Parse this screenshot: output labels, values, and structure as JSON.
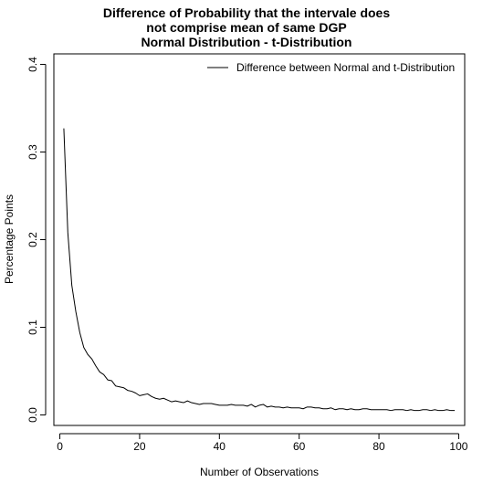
{
  "chart_data": {
    "type": "line",
    "title_lines": [
      "Difference of Probability that the intervale does",
      "not comprise mean of same DGP",
      "Normal Distribution - t-Distribution"
    ],
    "xlabel": "Number of Observations",
    "ylabel": "Percentage Points",
    "xlim": [
      -1.5,
      101.5
    ],
    "ylim": [
      -0.012,
      0.412
    ],
    "x_ticks": [
      0,
      20,
      40,
      60,
      80,
      100
    ],
    "x_tick_labels": [
      "0",
      "20",
      "40",
      "60",
      "80",
      "100"
    ],
    "y_ticks": [
      0.0,
      0.1,
      0.2,
      0.3,
      0.4
    ],
    "y_tick_labels": [
      "0.0",
      "0.1",
      "0.2",
      "0.3",
      "0.4"
    ],
    "grid": false,
    "legend_position": "top-right",
    "series": [
      {
        "name": "Difference between Normal and t-Distribution",
        "color": "#000000",
        "x": [
          1,
          2,
          3,
          4,
          5,
          6,
          7,
          8,
          9,
          10,
          11,
          12,
          13,
          14,
          15,
          16,
          17,
          18,
          19,
          20,
          21,
          22,
          23,
          24,
          25,
          26,
          27,
          28,
          29,
          30,
          31,
          32,
          33,
          34,
          35,
          36,
          37,
          38,
          39,
          40,
          41,
          42,
          43,
          44,
          45,
          46,
          47,
          48,
          49,
          50,
          51,
          52,
          53,
          54,
          55,
          56,
          57,
          58,
          59,
          60,
          61,
          62,
          63,
          64,
          65,
          66,
          67,
          68,
          69,
          70,
          71,
          72,
          73,
          74,
          75,
          76,
          77,
          78,
          79,
          80,
          81,
          82,
          83,
          84,
          85,
          86,
          87,
          88,
          89,
          90,
          91,
          92,
          93,
          94,
          95,
          96,
          97,
          98,
          99
        ],
        "values": [
          0.327,
          0.208,
          0.148,
          0.118,
          0.094,
          0.077,
          0.069,
          0.064,
          0.056,
          0.049,
          0.046,
          0.04,
          0.039,
          0.033,
          0.032,
          0.031,
          0.028,
          0.027,
          0.025,
          0.022,
          0.023,
          0.024,
          0.021,
          0.019,
          0.018,
          0.019,
          0.017,
          0.015,
          0.016,
          0.015,
          0.014,
          0.016,
          0.014,
          0.013,
          0.012,
          0.013,
          0.013,
          0.013,
          0.012,
          0.011,
          0.011,
          0.011,
          0.012,
          0.011,
          0.011,
          0.011,
          0.01,
          0.012,
          0.009,
          0.011,
          0.012,
          0.009,
          0.01,
          0.009,
          0.009,
          0.008,
          0.009,
          0.008,
          0.008,
          0.008,
          0.007,
          0.009,
          0.009,
          0.008,
          0.008,
          0.007,
          0.007,
          0.008,
          0.006,
          0.007,
          0.007,
          0.006,
          0.007,
          0.006,
          0.006,
          0.007,
          0.007,
          0.006,
          0.006,
          0.006,
          0.006,
          0.006,
          0.005,
          0.006,
          0.006,
          0.006,
          0.005,
          0.006,
          0.005,
          0.005,
          0.006,
          0.006,
          0.005,
          0.006,
          0.005,
          0.005,
          0.006,
          0.005,
          0.005
        ]
      }
    ]
  }
}
